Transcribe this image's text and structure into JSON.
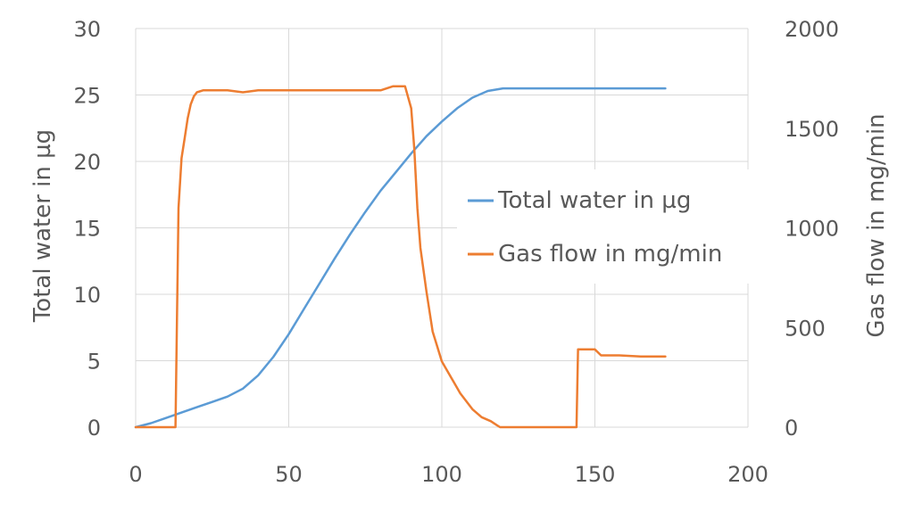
{
  "chart_data": {
    "type": "line",
    "title": "",
    "xlabel": "",
    "ylabel": "Total water in µg",
    "y2label": "Gas flow in mg/min",
    "xlim": [
      0,
      200
    ],
    "ylim": [
      0,
      30
    ],
    "y2lim": [
      0,
      2000
    ],
    "x_ticks": [
      "0",
      "50",
      "100",
      "150",
      "200"
    ],
    "y_ticks": [
      "0",
      "5",
      "10",
      "15",
      "20",
      "25",
      "30"
    ],
    "y2_ticks": [
      "0",
      "500",
      "1000",
      "1500",
      "2000"
    ],
    "grid": true,
    "legend_position": "right",
    "series": [
      {
        "name": "Total water in µg",
        "axis": "left",
        "color": "#5b9bd5",
        "x": [
          0,
          5,
          10,
          15,
          20,
          25,
          30,
          35,
          40,
          45,
          50,
          55,
          60,
          65,
          70,
          75,
          80,
          85,
          90,
          95,
          100,
          105,
          110,
          115,
          120,
          125,
          150,
          173
        ],
        "y": [
          0,
          0.3,
          0.7,
          1.1,
          1.5,
          1.9,
          2.3,
          2.9,
          3.9,
          5.3,
          7.0,
          8.9,
          10.8,
          12.7,
          14.5,
          16.2,
          17.8,
          19.2,
          20.6,
          21.9,
          23.0,
          24.0,
          24.8,
          25.3,
          25.5,
          25.5,
          25.5,
          25.5
        ]
      },
      {
        "name": "Gas flow in mg/min",
        "axis": "right",
        "color": "#ed7d31",
        "x": [
          0,
          13,
          14,
          15,
          16,
          17,
          18,
          19,
          20,
          22,
          25,
          30,
          35,
          40,
          45,
          50,
          60,
          70,
          80,
          84,
          88,
          90,
          91,
          92,
          93,
          95,
          97,
          100,
          103,
          106,
          110,
          113,
          116,
          118,
          119,
          120,
          130,
          144,
          144.5,
          150,
          152,
          158,
          165,
          173
        ],
        "y": [
          0,
          0,
          1100,
          1350,
          1450,
          1550,
          1620,
          1660,
          1680,
          1690,
          1690,
          1690,
          1680,
          1690,
          1690,
          1690,
          1690,
          1690,
          1690,
          1710,
          1710,
          1600,
          1400,
          1100,
          900,
          680,
          480,
          330,
          250,
          170,
          90,
          50,
          30,
          10,
          0,
          0,
          0,
          0,
          390,
          390,
          360,
          360,
          355,
          355
        ]
      }
    ]
  }
}
